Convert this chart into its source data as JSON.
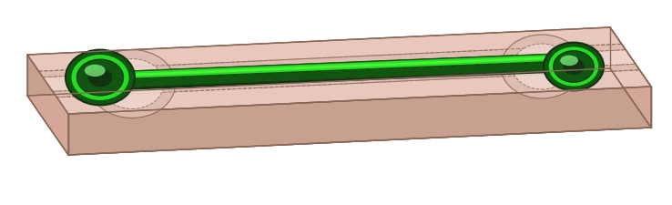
{
  "fig_width": 7.38,
  "fig_height": 2.26,
  "dpi": 100,
  "bg_color": "#ffffff",
  "body_top": "#e8c8bc",
  "body_side_bottom": "#d4a898",
  "body_side_front": "#c8a090",
  "body_edge": "#8a6858",
  "channel_inner": "#ddbcb0",
  "channel_lighter": "#f0d8d0",
  "green_bright": "#22dd22",
  "green_mid": "#119911",
  "green_dark": "#115511",
  "green_shadow": "#224422",
  "green_very_dark": "#113311"
}
